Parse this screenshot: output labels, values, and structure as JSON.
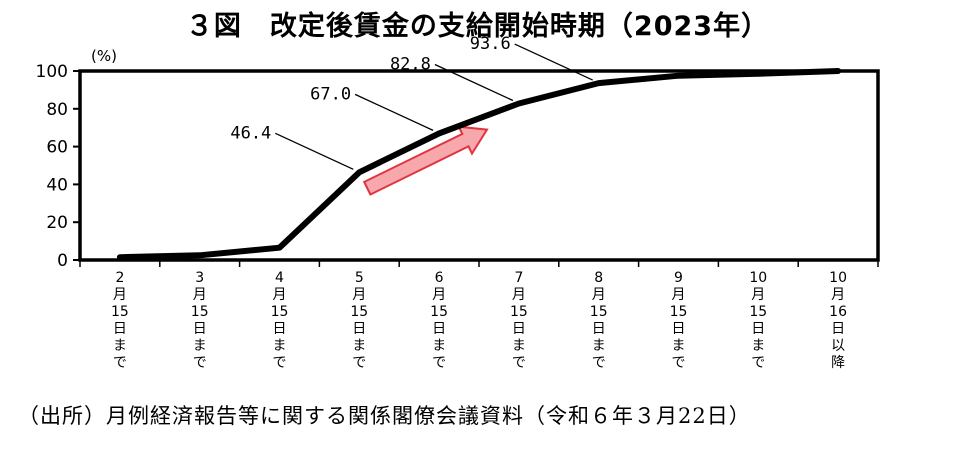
{
  "title": "３図　改定後賃金の支給開始時期（2023年）",
  "source": "（出所）月例経済報告等に関する関係閣僚会議資料（令和６年３月22日）",
  "colors": {
    "line": "#000000",
    "arrow_fill": "#f7a8ad",
    "arrow_stroke": "#e0343f"
  },
  "chart_data": {
    "type": "line",
    "title": "３図　改定後賃金の支給開始時期（2023年）",
    "y_unit": "(%)",
    "ylim": [
      0,
      100
    ],
    "yticks": [
      0,
      20,
      40,
      60,
      80,
      100
    ],
    "grid": false,
    "categories": [
      "2月15日まで",
      "3月15日まで",
      "4月15日まで",
      "5月15日まで",
      "6月15日まで",
      "7月15日まで",
      "8月15日まで",
      "9月15日まで",
      "10月15日まで",
      "10月16日以降"
    ],
    "category_lines": [
      [
        "2",
        "月",
        "15",
        "日",
        "ま",
        "で"
      ],
      [
        "3",
        "月",
        "15",
        "日",
        "ま",
        "で"
      ],
      [
        "4",
        "月",
        "15",
        "日",
        "ま",
        "で"
      ],
      [
        "5",
        "月",
        "15",
        "日",
        "ま",
        "で"
      ],
      [
        "6",
        "月",
        "15",
        "日",
        "ま",
        "で"
      ],
      [
        "7",
        "月",
        "15",
        "日",
        "ま",
        "で"
      ],
      [
        "8",
        "月",
        "15",
        "日",
        "ま",
        "で"
      ],
      [
        "9",
        "月",
        "15",
        "日",
        "ま",
        "で"
      ],
      [
        "10",
        "月",
        "15",
        "日",
        "ま",
        "で"
      ],
      [
        "10",
        "月",
        "16",
        "日",
        "以",
        "降"
      ]
    ],
    "series": [
      {
        "values": [
          1.5,
          2.5,
          6.5,
          46.4,
          67.0,
          82.8,
          93.6,
          97.5,
          98.5,
          100
        ]
      }
    ],
    "data_labels": [
      {
        "index": 3,
        "text": "46.4"
      },
      {
        "index": 4,
        "text": "67.0"
      },
      {
        "index": 5,
        "text": "82.8"
      },
      {
        "index": 6,
        "text": "93.6"
      }
    ],
    "annotations": [
      {
        "type": "arrow",
        "from_index": 3.1,
        "from_value": 38,
        "to_index": 4.6,
        "to_value": 69
      }
    ]
  }
}
